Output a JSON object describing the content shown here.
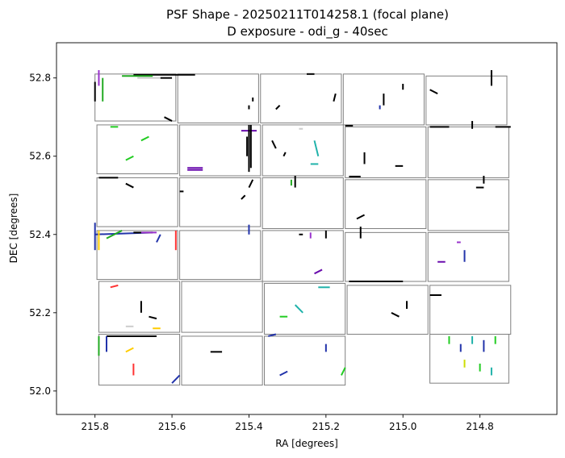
{
  "chart_data": {
    "type": "scatter",
    "title_line1": "PSF Shape - 20250211T014258.1 (focal plane)",
    "title_line2": "D exposure - odi_g - 40sec",
    "xlabel": "RA [degrees]",
    "ylabel": "DEC [degrees]",
    "xlim": [
      215.9,
      214.6
    ],
    "ylim": [
      51.94,
      52.89
    ],
    "x_inverted": true,
    "xticks": [
      215.8,
      215.6,
      215.4,
      215.2,
      215.0,
      214.8
    ],
    "xtick_labels": [
      "215.8",
      "215.6",
      "215.4",
      "215.2",
      "215.0",
      "214.8"
    ],
    "yticks": [
      52.0,
      52.2,
      52.4,
      52.6,
      52.8
    ],
    "ytick_labels": [
      "52.0",
      "52.2",
      "52.4",
      "52.6",
      "52.8"
    ],
    "grid": false,
    "ota_cells": [
      {
        "ra0": 215.8,
        "ra1": 215.59,
        "dec0": 52.69,
        "dec1": 52.81
      },
      {
        "ra0": 215.585,
        "ra1": 215.375,
        "dec0": 52.685,
        "dec1": 52.81
      },
      {
        "ra0": 215.37,
        "ra1": 215.16,
        "dec0": 52.685,
        "dec1": 52.81
      },
      {
        "ra0": 215.155,
        "ra1": 214.945,
        "dec0": 52.68,
        "dec1": 52.81
      },
      {
        "ra0": 214.94,
        "ra1": 214.73,
        "dec0": 52.68,
        "dec1": 52.805
      },
      {
        "ra0": 215.795,
        "ra1": 215.585,
        "dec0": 52.555,
        "dec1": 52.68
      },
      {
        "ra0": 215.58,
        "ra1": 215.37,
        "dec0": 52.55,
        "dec1": 52.68
      },
      {
        "ra0": 215.365,
        "ra1": 215.155,
        "dec0": 52.55,
        "dec1": 52.68
      },
      {
        "ra0": 215.15,
        "ra1": 214.94,
        "dec0": 52.545,
        "dec1": 52.675
      },
      {
        "ra0": 214.935,
        "ra1": 214.725,
        "dec0": 52.545,
        "dec1": 52.675
      },
      {
        "ra0": 215.795,
        "ra1": 215.585,
        "dec0": 52.42,
        "dec1": 52.545
      },
      {
        "ra0": 215.58,
        "ra1": 215.37,
        "dec0": 52.42,
        "dec1": 52.545
      },
      {
        "ra0": 215.365,
        "ra1": 215.155,
        "dec0": 52.415,
        "dec1": 52.545
      },
      {
        "ra0": 215.15,
        "ra1": 214.94,
        "dec0": 52.415,
        "dec1": 52.54
      },
      {
        "ra0": 214.935,
        "ra1": 214.725,
        "dec0": 52.41,
        "dec1": 52.54
      },
      {
        "ra0": 215.795,
        "ra1": 215.585,
        "dec0": 52.285,
        "dec1": 52.41
      },
      {
        "ra0": 215.58,
        "ra1": 215.37,
        "dec0": 52.285,
        "dec1": 52.41
      },
      {
        "ra0": 215.365,
        "ra1": 215.155,
        "dec0": 52.28,
        "dec1": 52.41
      },
      {
        "ra0": 215.15,
        "ra1": 214.94,
        "dec0": 52.28,
        "dec1": 52.405
      },
      {
        "ra0": 214.935,
        "ra1": 214.725,
        "dec0": 52.28,
        "dec1": 52.405
      },
      {
        "ra0": 215.79,
        "ra1": 215.58,
        "dec0": 52.15,
        "dec1": 52.28
      },
      {
        "ra0": 215.575,
        "ra1": 215.365,
        "dec0": 52.15,
        "dec1": 52.28
      },
      {
        "ra0": 215.36,
        "ra1": 215.15,
        "dec0": 52.145,
        "dec1": 52.275
      },
      {
        "ra0": 215.145,
        "ra1": 214.935,
        "dec0": 52.145,
        "dec1": 52.27
      },
      {
        "ra0": 214.93,
        "ra1": 214.72,
        "dec0": 52.145,
        "dec1": 52.27
      },
      {
        "ra0": 215.79,
        "ra1": 215.58,
        "dec0": 52.015,
        "dec1": 52.145
      },
      {
        "ra0": 215.575,
        "ra1": 215.365,
        "dec0": 52.015,
        "dec1": 52.14
      },
      {
        "ra0": 215.36,
        "ra1": 215.15,
        "dec0": 52.015,
        "dec1": 52.14
      },
      {
        "ra0": 214.93,
        "ra1": 214.725,
        "dec0": 52.02,
        "dec1": 52.145
      }
    ],
    "psf_segments": [
      {
        "ra": 215.7,
        "dec": 52.808,
        "dra": 0.16,
        "ddec": 0,
        "color": "#000000"
      },
      {
        "ra": 215.73,
        "dec": 52.805,
        "dra": 0.08,
        "ddec": 0,
        "color": "#22aa22"
      },
      {
        "ra": 215.69,
        "dec": 52.8,
        "dra": 0.06,
        "ddec": 0,
        "color": "#cccccc"
      },
      {
        "ra": 215.63,
        "dec": 52.8,
        "dra": 0.03,
        "ddec": 0,
        "color": "#000000"
      },
      {
        "ra": 215.79,
        "dec": 52.78,
        "dra": 0,
        "ddec": 0.04,
        "color": "#9933cc"
      },
      {
        "ra": 215.8,
        "dec": 52.74,
        "dra": 0,
        "ddec": 0.05,
        "color": "#000000"
      },
      {
        "ra": 215.78,
        "dec": 52.74,
        "dra": 0,
        "ddec": 0.06,
        "color": "#22aa22"
      },
      {
        "ra": 215.62,
        "dec": 52.7,
        "dra": 0.02,
        "ddec": -0.01,
        "color": "#000000"
      },
      {
        "ra": 215.4,
        "dec": 52.72,
        "dra": 0,
        "ddec": 0.01,
        "color": "#000000"
      },
      {
        "ra": 215.39,
        "dec": 52.74,
        "dra": 0,
        "ddec": 0.01,
        "color": "#000000"
      },
      {
        "ra": 215.18,
        "dec": 52.74,
        "dra": 0.005,
        "ddec": 0.02,
        "color": "#000000"
      },
      {
        "ra": 215.25,
        "dec": 52.81,
        "dra": 0.02,
        "ddec": 0,
        "color": "#000000"
      },
      {
        "ra": 215.33,
        "dec": 52.72,
        "dra": 0.01,
        "ddec": 0.01,
        "color": "#000000"
      },
      {
        "ra": 214.91,
        "dec": 52.76,
        "dra": -0.02,
        "ddec": 0.01,
        "color": "#000000"
      },
      {
        "ra": 214.77,
        "dec": 52.78,
        "dra": 0,
        "ddec": 0.04,
        "color": "#000000"
      },
      {
        "ra": 215.05,
        "dec": 52.73,
        "dra": 0,
        "ddec": 0.03,
        "color": "#000000"
      },
      {
        "ra": 215.0,
        "dec": 52.77,
        "dra": 0,
        "ddec": 0.015,
        "color": "#000000"
      },
      {
        "ra": 215.06,
        "dec": 52.72,
        "dra": 0,
        "ddec": 0.01,
        "color": "#2233aa"
      },
      {
        "ra": 215.68,
        "dec": 52.64,
        "dra": 0.02,
        "ddec": 0.01,
        "color": "#22cc22"
      },
      {
        "ra": 215.76,
        "dec": 52.675,
        "dra": 0.02,
        "ddec": 0,
        "color": "#22cc22"
      },
      {
        "ra": 215.7,
        "dec": 52.6,
        "dra": -0.02,
        "ddec": -0.01,
        "color": "#22cc22"
      },
      {
        "ra": 215.56,
        "dec": 52.565,
        "dra": 0.04,
        "ddec": 0,
        "color": "#6a0dad"
      },
      {
        "ra": 215.56,
        "dec": 52.57,
        "dra": 0.04,
        "ddec": 0,
        "color": "#6a0dad"
      },
      {
        "ra": 215.42,
        "dec": 52.665,
        "dra": 0.04,
        "ddec": 0,
        "color": "#6a0dad"
      },
      {
        "ra": 215.4,
        "dec": 52.56,
        "dra": 0,
        "ddec": 0.12,
        "color": "#000000"
      },
      {
        "ra": 215.395,
        "dec": 52.57,
        "dra": 0,
        "ddec": 0.11,
        "color": "#000000"
      },
      {
        "ra": 215.405,
        "dec": 52.6,
        "dra": 0,
        "ddec": 0.05,
        "color": "#000000"
      },
      {
        "ra": 215.33,
        "dec": 52.62,
        "dra": -0.01,
        "ddec": 0.02,
        "color": "#000000"
      },
      {
        "ra": 215.31,
        "dec": 52.6,
        "dra": 0.005,
        "ddec": 0.01,
        "color": "#000000"
      },
      {
        "ra": 215.24,
        "dec": 52.58,
        "dra": 0.02,
        "ddec": 0,
        "color": "#20b2aa"
      },
      {
        "ra": 215.22,
        "dec": 52.6,
        "dra": -0.01,
        "ddec": 0.04,
        "color": "#20b2aa"
      },
      {
        "ra": 215.27,
        "dec": 52.67,
        "dra": 0.01,
        "ddec": 0,
        "color": "#cccccc"
      },
      {
        "ra": 215.15,
        "dec": 52.678,
        "dra": 0.02,
        "ddec": 0,
        "color": "#000000"
      },
      {
        "ra": 214.93,
        "dec": 52.675,
        "dra": 0.05,
        "ddec": 0,
        "color": "#000000"
      },
      {
        "ra": 214.76,
        "dec": 52.675,
        "dra": 0.04,
        "ddec": 0,
        "color": "#000000"
      },
      {
        "ra": 214.82,
        "dec": 52.67,
        "dra": 0,
        "ddec": 0.02,
        "color": "#000000"
      },
      {
        "ra": 215.02,
        "dec": 52.575,
        "dra": 0.02,
        "ddec": 0,
        "color": "#000000"
      },
      {
        "ra": 215.1,
        "dec": 52.58,
        "dra": 0,
        "ddec": 0.03,
        "color": "#000000"
      },
      {
        "ra": 215.79,
        "dec": 52.545,
        "dra": 0.05,
        "ddec": 0,
        "color": "#000000"
      },
      {
        "ra": 215.72,
        "dec": 52.53,
        "dra": 0.02,
        "ddec": -0.01,
        "color": "#000000"
      },
      {
        "ra": 215.58,
        "dec": 52.51,
        "dra": 0.01,
        "ddec": 0,
        "color": "#000000"
      },
      {
        "ra": 215.4,
        "dec": 52.52,
        "dra": 0.01,
        "ddec": 0.02,
        "color": "#000000"
      },
      {
        "ra": 215.42,
        "dec": 52.49,
        "dra": 0.01,
        "ddec": 0.01,
        "color": "#000000"
      },
      {
        "ra": 215.28,
        "dec": 52.52,
        "dra": 0,
        "ddec": 0.03,
        "color": "#000000"
      },
      {
        "ra": 215.29,
        "dec": 52.525,
        "dra": 0,
        "ddec": 0.015,
        "color": "#22aa22"
      },
      {
        "ra": 215.14,
        "dec": 52.548,
        "dra": 0.03,
        "ddec": 0,
        "color": "#000000"
      },
      {
        "ra": 215.12,
        "dec": 52.44,
        "dra": 0.02,
        "ddec": 0.01,
        "color": "#000000"
      },
      {
        "ra": 214.81,
        "dec": 52.52,
        "dra": 0.02,
        "ddec": 0,
        "color": "#000000"
      },
      {
        "ra": 214.79,
        "dec": 52.53,
        "dra": 0,
        "ddec": 0.02,
        "color": "#000000"
      },
      {
        "ra": 215.8,
        "dec": 52.4,
        "dra": 0.15,
        "ddec": 0.005,
        "color": "#2233aa"
      },
      {
        "ra": 215.8,
        "dec": 52.36,
        "dra": 0,
        "ddec": 0.07,
        "color": "#2233aa"
      },
      {
        "ra": 215.77,
        "dec": 52.39,
        "dra": 0.04,
        "ddec": 0.02,
        "color": "#22aa22"
      },
      {
        "ra": 215.79,
        "dec": 52.36,
        "dra": 0,
        "ddec": 0.05,
        "color": "#ffcc00"
      },
      {
        "ra": 215.7,
        "dec": 52.405,
        "dra": 0.05,
        "ddec": 0,
        "color": "#000000"
      },
      {
        "ra": 215.68,
        "dec": 52.405,
        "dra": 0.04,
        "ddec": 0,
        "color": "#9933cc"
      },
      {
        "ra": 215.64,
        "dec": 52.38,
        "dra": 0.01,
        "ddec": 0.02,
        "color": "#2233aa"
      },
      {
        "ra": 215.59,
        "dec": 52.36,
        "dra": 0,
        "ddec": 0.05,
        "color": "#ff3333"
      },
      {
        "ra": 215.4,
        "dec": 52.4,
        "dra": 0,
        "ddec": 0.025,
        "color": "#2233aa"
      },
      {
        "ra": 215.11,
        "dec": 52.39,
        "dra": 0,
        "ddec": 0.03,
        "color": "#000000"
      },
      {
        "ra": 215.2,
        "dec": 52.39,
        "dra": 0,
        "ddec": 0.02,
        "color": "#000000"
      },
      {
        "ra": 215.24,
        "dec": 52.39,
        "dra": 0,
        "ddec": 0.015,
        "color": "#9933cc"
      },
      {
        "ra": 215.27,
        "dec": 52.4,
        "dra": 0.01,
        "ddec": 0,
        "color": "#000000"
      },
      {
        "ra": 215.23,
        "dec": 52.3,
        "dra": 0.02,
        "ddec": 0.01,
        "color": "#6a0dad"
      },
      {
        "ra": 214.91,
        "dec": 52.33,
        "dra": 0.02,
        "ddec": 0,
        "color": "#6a0dad"
      },
      {
        "ra": 214.84,
        "dec": 52.33,
        "dra": 0,
        "ddec": 0.03,
        "color": "#2233aa"
      },
      {
        "ra": 214.86,
        "dec": 52.38,
        "dra": 0.01,
        "ddec": 0,
        "color": "#9933cc"
      },
      {
        "ra": 215.14,
        "dec": 52.28,
        "dra": 0.14,
        "ddec": 0,
        "color": "#000000"
      },
      {
        "ra": 214.93,
        "dec": 52.245,
        "dra": 0.03,
        "ddec": 0,
        "color": "#000000"
      },
      {
        "ra": 215.22,
        "dec": 52.265,
        "dra": 0.03,
        "ddec": 0,
        "color": "#20b2aa"
      },
      {
        "ra": 215.28,
        "dec": 52.22,
        "dra": 0.02,
        "ddec": -0.02,
        "color": "#20b2aa"
      },
      {
        "ra": 215.32,
        "dec": 52.19,
        "dra": 0.02,
        "ddec": 0,
        "color": "#22cc22"
      },
      {
        "ra": 215.03,
        "dec": 52.2,
        "dra": 0.02,
        "ddec": -0.01,
        "color": "#000000"
      },
      {
        "ra": 214.99,
        "dec": 52.21,
        "dra": 0,
        "ddec": 0.02,
        "color": "#000000"
      },
      {
        "ra": 215.74,
        "dec": 52.27,
        "dra": -0.02,
        "ddec": -0.005,
        "color": "#ff3333"
      },
      {
        "ra": 215.68,
        "dec": 52.2,
        "dra": 0,
        "ddec": 0.03,
        "color": "#000000"
      },
      {
        "ra": 215.65,
        "dec": 52.16,
        "dra": 0.02,
        "ddec": 0,
        "color": "#ffcc00"
      },
      {
        "ra": 215.66,
        "dec": 52.19,
        "dra": 0.02,
        "ddec": -0.005,
        "color": "#000000"
      },
      {
        "ra": 215.72,
        "dec": 52.165,
        "dra": 0.02,
        "ddec": 0,
        "color": "#cccccc"
      },
      {
        "ra": 215.77,
        "dec": 52.14,
        "dra": 0.13,
        "ddec": 0,
        "color": "#000000"
      },
      {
        "ra": 215.79,
        "dec": 52.09,
        "dra": 0,
        "ddec": 0.05,
        "color": "#22aa22"
      },
      {
        "ra": 215.77,
        "dec": 52.1,
        "dra": 0,
        "ddec": 0.04,
        "color": "#2233aa"
      },
      {
        "ra": 215.72,
        "dec": 52.1,
        "dra": 0.02,
        "ddec": 0.01,
        "color": "#ffcc00"
      },
      {
        "ra": 215.7,
        "dec": 52.04,
        "dra": 0,
        "ddec": 0.03,
        "color": "#ff3333"
      },
      {
        "ra": 215.6,
        "dec": 52.02,
        "dra": 0.02,
        "ddec": 0.02,
        "color": "#2233aa"
      },
      {
        "ra": 215.5,
        "dec": 52.1,
        "dra": 0.03,
        "ddec": 0,
        "color": "#000000"
      },
      {
        "ra": 215.35,
        "dec": 52.14,
        "dra": 0.02,
        "ddec": 0.005,
        "color": "#2233aa"
      },
      {
        "ra": 215.32,
        "dec": 52.04,
        "dra": 0.02,
        "ddec": 0.01,
        "color": "#2233aa"
      },
      {
        "ra": 215.16,
        "dec": 52.04,
        "dra": 0.01,
        "ddec": 0.02,
        "color": "#22cc22"
      },
      {
        "ra": 215.2,
        "dec": 52.1,
        "dra": 0,
        "ddec": 0.02,
        "color": "#2233aa"
      },
      {
        "ra": 214.88,
        "dec": 52.12,
        "dra": 0,
        "ddec": 0.02,
        "color": "#22cc22"
      },
      {
        "ra": 214.85,
        "dec": 52.1,
        "dra": 0,
        "ddec": 0.02,
        "color": "#2233aa"
      },
      {
        "ra": 214.82,
        "dec": 52.12,
        "dra": 0,
        "ddec": 0.02,
        "color": "#20b2aa"
      },
      {
        "ra": 214.79,
        "dec": 52.1,
        "dra": 0,
        "ddec": 0.03,
        "color": "#2233aa"
      },
      {
        "ra": 214.76,
        "dec": 52.12,
        "dra": 0,
        "ddec": 0.02,
        "color": "#22cc22"
      },
      {
        "ra": 214.8,
        "dec": 52.05,
        "dra": 0,
        "ddec": 0.02,
        "color": "#22cc22"
      },
      {
        "ra": 214.77,
        "dec": 52.04,
        "dra": 0,
        "ddec": 0.02,
        "color": "#20b2aa"
      },
      {
        "ra": 214.84,
        "dec": 52.06,
        "dra": 0,
        "ddec": 0.02,
        "color": "#ccdd00"
      }
    ]
  }
}
